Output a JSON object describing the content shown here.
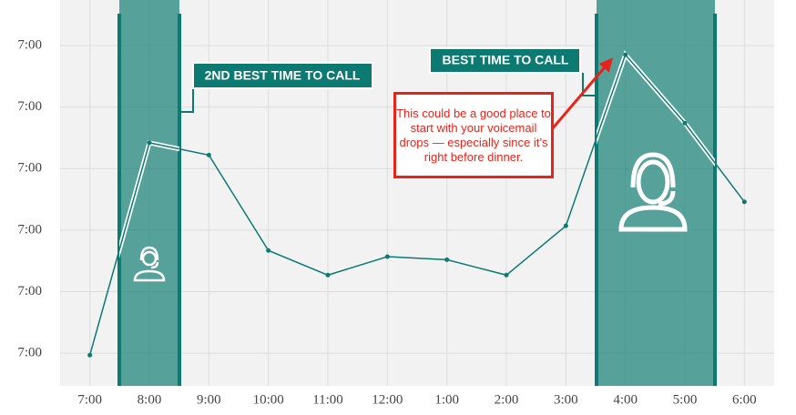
{
  "chart_data": {
    "type": "line",
    "categories": [
      "7:00",
      "8:00",
      "9:00",
      "10:00",
      "11:00",
      "12:00",
      "1:00",
      "2:00",
      "3:00",
      "4:00",
      "5:00",
      "6:00"
    ],
    "values": [
      -0.03,
      3.42,
      3.22,
      1.67,
      1.27,
      1.57,
      1.52,
      1.27,
      2.07,
      4.85,
      3.74,
      2.46
    ],
    "color": "#0d7a72",
    "ylim": [
      -0.53,
      5.74
    ],
    "yticks": [
      {
        "value": 0,
        "label": "7:00"
      },
      {
        "value": 1,
        "label": "7:00"
      },
      {
        "value": 2,
        "label": "7:00"
      },
      {
        "value": 3,
        "label": "7:00"
      },
      {
        "value": 4,
        "label": "7:00"
      },
      {
        "value": 5,
        "label": "7:00"
      }
    ],
    "grid": true,
    "highlights": [
      {
        "label": "2ND BEST TIME TO CALL"
      },
      {
        "label": "BEST TIME TO CALL"
      }
    ],
    "annotation": "This  could be a good place to start with your voicemail drops — especially since it’s right before dinner."
  }
}
